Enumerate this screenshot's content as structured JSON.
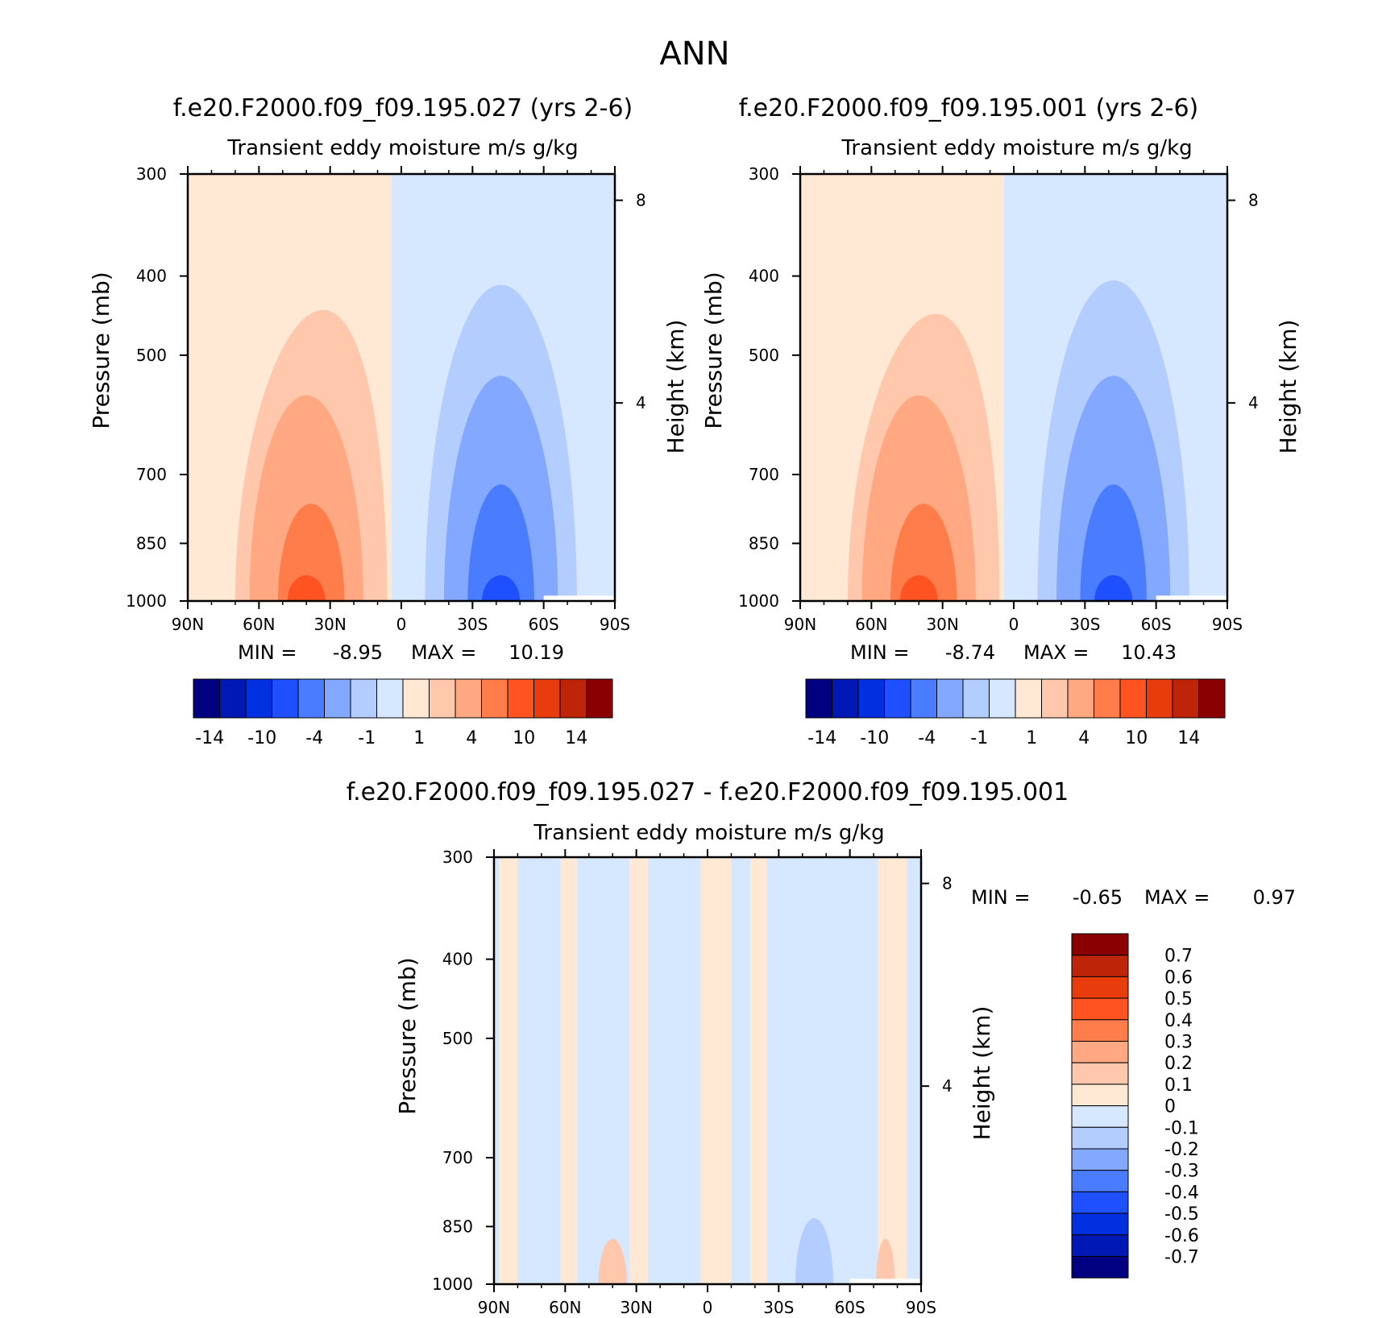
{
  "title": "ANN",
  "chart_data": [
    {
      "type": "heatmap",
      "title": "f.e20.F2000.f09_f09.195.027 (yrs 2-6)",
      "subtitle": "Transient eddy moisture m/s g/kg",
      "xlabel": "",
      "ylabel": "Pressure (mb)",
      "ylabel_right": "Height (km)",
      "x_ticks": [
        "90N",
        "60N",
        "30N",
        "0",
        "30S",
        "60S",
        "90S"
      ],
      "y_ticks": [
        "300",
        "400",
        "500",
        "700",
        "850",
        "1000"
      ],
      "y_ticks_right": [
        "8",
        "4"
      ],
      "ylim": [
        1000,
        300
      ],
      "yscale": "log",
      "min_label": "MIN =",
      "min_value": "-8.95",
      "max_label": "MAX =",
      "max_value": "10.19",
      "colorbar_labels": [
        "-14",
        "-10",
        "-4",
        "-1",
        "1",
        "4",
        "10",
        "14"
      ],
      "features": [
        {
          "lat": 38,
          "top_pressure": 440,
          "sign": "positive",
          "peak_level": 5
        },
        {
          "lat": -42,
          "top_pressure": 410,
          "sign": "negative",
          "peak_level": 5
        }
      ]
    },
    {
      "type": "heatmap",
      "title": "f.e20.F2000.f09_f09.195.001 (yrs 2-6)",
      "subtitle": "Transient eddy moisture m/s g/kg",
      "xlabel": "",
      "ylabel": "Pressure (mb)",
      "ylabel_right": "Height (km)",
      "x_ticks": [
        "90N",
        "60N",
        "30N",
        "0",
        "30S",
        "60S",
        "90S"
      ],
      "y_ticks": [
        "300",
        "400",
        "500",
        "700",
        "850",
        "1000"
      ],
      "y_ticks_right": [
        "8",
        "4"
      ],
      "ylim": [
        1000,
        300
      ],
      "yscale": "log",
      "min_label": "MIN =",
      "min_value": "-8.74",
      "max_label": "MAX =",
      "max_value": "10.43",
      "colorbar_labels": [
        "-14",
        "-10",
        "-4",
        "-1",
        "1",
        "4",
        "10",
        "14"
      ],
      "features": [
        {
          "lat": 38,
          "top_pressure": 445,
          "sign": "positive",
          "peak_level": 5
        },
        {
          "lat": -42,
          "top_pressure": 405,
          "sign": "negative",
          "peak_level": 5
        }
      ]
    },
    {
      "type": "heatmap",
      "title": "f.e20.F2000.f09_f09.195.027 - f.e20.F2000.f09_f09.195.001",
      "subtitle": "Transient eddy moisture m/s g/kg",
      "xlabel": "",
      "ylabel": "Pressure (mb)",
      "ylabel_right": "Height (km)",
      "x_ticks": [
        "90N",
        "60N",
        "30N",
        "0",
        "30S",
        "60S",
        "90S"
      ],
      "y_ticks": [
        "300",
        "400",
        "500",
        "700",
        "850",
        "1000"
      ],
      "y_ticks_right": [
        "8",
        "4"
      ],
      "ylim": [
        1000,
        300
      ],
      "yscale": "log",
      "min_label": "MIN =",
      "min_value": "-0.65",
      "max_label": "MAX =",
      "max_value": "0.97",
      "colorbar_labels": [
        "0.7",
        "0.6",
        "0.5",
        "0.4",
        "0.3",
        "0.2",
        "0.1",
        "0",
        "-0.1",
        "-0.2",
        "-0.3",
        "-0.4",
        "-0.5",
        "-0.6",
        "-0.7"
      ]
    }
  ],
  "colormap": [
    "#000080",
    "#0018b4",
    "#0030e0",
    "#1e50ff",
    "#4a7cff",
    "#82a8ff",
    "#b4cdff",
    "#d6e8ff",
    "#ffe8d4",
    "#ffc8ac",
    "#ffa882",
    "#ff7d4a",
    "#ff5322",
    "#e83c0c",
    "#bd2408",
    "#8a0000"
  ]
}
